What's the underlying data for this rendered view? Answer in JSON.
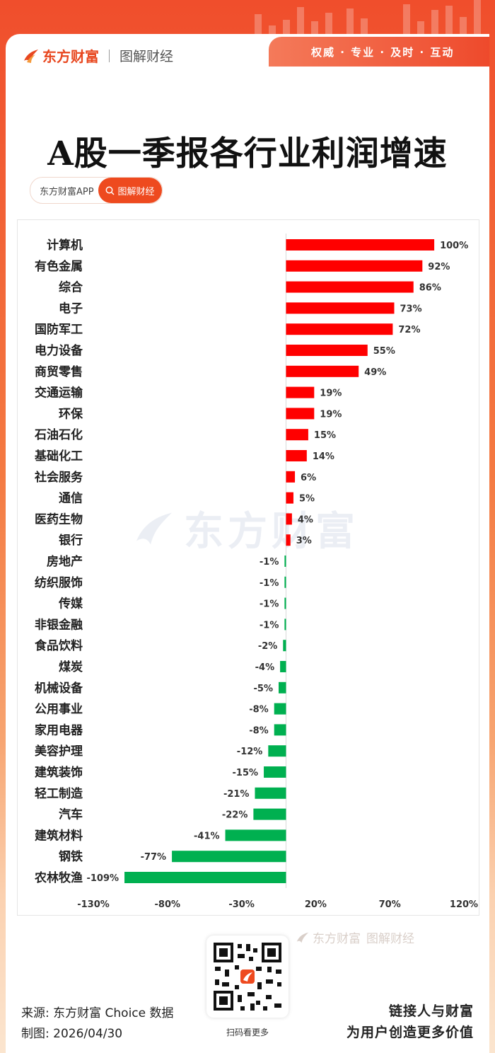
{
  "header": {
    "brand": "东方财富",
    "channel": "图解财经",
    "tagline": "权威 · 专业 · 及时 · 互动"
  },
  "title": "A股一季报各行业利润增速",
  "pill": {
    "left": "东方财富APP",
    "right": "图解财经"
  },
  "watermark": "东方财富",
  "chart_data": {
    "type": "bar",
    "orientation": "horizontal",
    "categories": [
      "计算机",
      "有色金属",
      "综合",
      "电子",
      "国防军工",
      "电力设备",
      "商贸零售",
      "交通运输",
      "环保",
      "石油石化",
      "基础化工",
      "社会服务",
      "通信",
      "医药生物",
      "银行",
      "房地产",
      "纺织服饰",
      "传媒",
      "非银金融",
      "食品饮料",
      "煤炭",
      "机械设备",
      "公用事业",
      "家用电器",
      "美容护理",
      "建筑装饰",
      "轻工制造",
      "汽车",
      "建筑材料",
      "钢铁",
      "农林牧渔"
    ],
    "values": [
      100,
      92,
      86,
      73,
      72,
      55,
      49,
      19,
      19,
      15,
      14,
      6,
      5,
      4,
      3,
      -1,
      -1,
      -1,
      -1,
      -2,
      -4,
      -5,
      -8,
      -8,
      -12,
      -15,
      -21,
      -22,
      -41,
      -77,
      -109
    ],
    "data_labels": [
      "100%",
      "92%",
      "86%",
      "73%",
      "72%",
      "55%",
      "49%",
      "19%",
      "19%",
      "15%",
      "14%",
      "6%",
      "5%",
      "4%",
      "3%",
      "-1%",
      "-1%",
      "-1%",
      "-1%",
      "-2%",
      "-4%",
      "-5%",
      "-8%",
      "-8%",
      "-12%",
      "-15%",
      "-21%",
      "-22%",
      "-41%",
      "-77%",
      "-109%"
    ],
    "xlim": [
      -130,
      120
    ],
    "x_ticks": [
      -130,
      -80,
      -30,
      20,
      70,
      120
    ],
    "x_tick_labels": [
      "-130%",
      "-80%",
      "-30%",
      "20%",
      "70%",
      "120%"
    ],
    "colors": {
      "positive": "#ff0000",
      "negative": "#00b050"
    },
    "grid": false,
    "legend": "none"
  },
  "footer": {
    "brand": "东方财富",
    "channel": "图解财经",
    "source": "来源: 东方财富 Choice 数据",
    "made": "制图: 2026/04/30",
    "qr_caption": "扫码看更多",
    "slogan_line1": "链接人与财富",
    "slogan_line2": "为用户创造更多价值"
  }
}
